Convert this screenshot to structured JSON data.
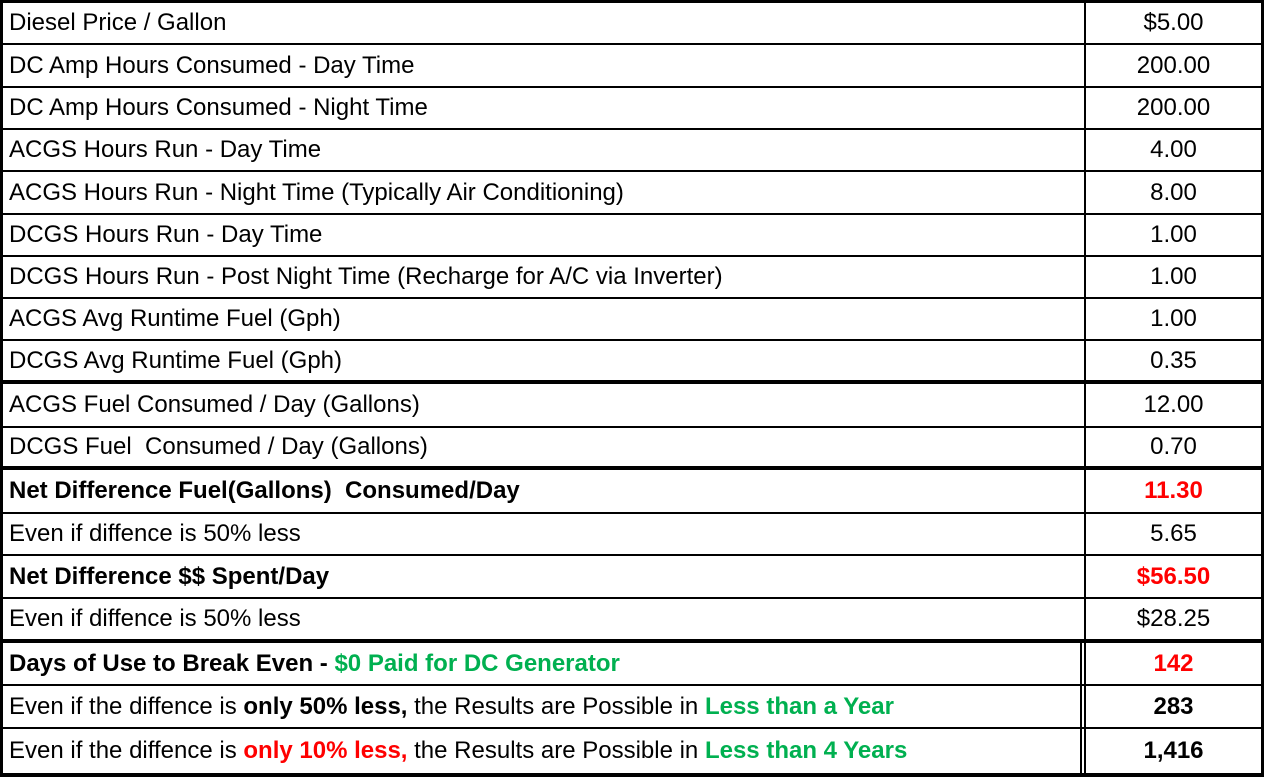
{
  "colors": {
    "red": "#ff0000",
    "green": "#00b050"
  },
  "rows": [
    {
      "label_parts": [
        {
          "text": "Diesel Price / Gallon"
        }
      ],
      "value": "$5.00"
    },
    {
      "label_parts": [
        {
          "text": "DC Amp Hours Consumed - Day Time"
        }
      ],
      "value": "200.00"
    },
    {
      "label_parts": [
        {
          "text": "DC Amp Hours Consumed - Night Time"
        }
      ],
      "value": "200.00"
    },
    {
      "label_parts": [
        {
          "text": "ACGS Hours Run - Day Time"
        }
      ],
      "value": "4.00"
    },
    {
      "label_parts": [
        {
          "text": "ACGS Hours Run - Night Time (Typically Air Conditioning)"
        }
      ],
      "value": "8.00"
    },
    {
      "label_parts": [
        {
          "text": "DCGS Hours Run - Day Time"
        }
      ],
      "value": "1.00"
    },
    {
      "label_parts": [
        {
          "text": "DCGS Hours Run - Post Night Time (Recharge for A/C via Inverter)"
        }
      ],
      "value": "1.00"
    },
    {
      "label_parts": [
        {
          "text": "ACGS Avg Runtime Fuel (Gph)"
        }
      ],
      "value": "1.00"
    },
    {
      "label_parts": [
        {
          "text": "DCGS Avg Runtime Fuel (Gph)"
        }
      ],
      "value": "0.35"
    },
    {
      "label_parts": [
        {
          "text": "ACGS Fuel Consumed / Day (Gallons)"
        }
      ],
      "value": "12.00"
    },
    {
      "label_parts": [
        {
          "text": "DCGS Fuel  Consumed / Day (Gallons)"
        }
      ],
      "value": "0.70"
    },
    {
      "label_parts": [
        {
          "text": "Net Difference Fuel(Gallons)  Consumed/Day",
          "style": "b"
        }
      ],
      "value": "11.30",
      "value_style": "b red"
    },
    {
      "label_parts": [
        {
          "text": "Even if diffence is 50% less"
        }
      ],
      "value": "5.65"
    },
    {
      "label_parts": [
        {
          "text": "Net Difference $$ Spent/Day",
          "style": "b"
        }
      ],
      "value": "$56.50",
      "value_style": "b red"
    },
    {
      "label_parts": [
        {
          "text": "Even if diffence is 50% less"
        }
      ],
      "value": "$28.25"
    },
    {
      "label_parts": [
        {
          "text": "Days of Use to Break Even - ",
          "style": "b"
        },
        {
          "text": "$0 Paid for DC Generator",
          "style": "b green"
        }
      ],
      "value": "142",
      "value_style": "b red"
    },
    {
      "label_parts": [
        {
          "text": "Even if the diffence is "
        },
        {
          "text": "only 50% less,",
          "style": "b"
        },
        {
          "text": " the Results are Possible in "
        },
        {
          "text": "Less than a Year",
          "style": "b green"
        }
      ],
      "value": "283",
      "value_style": "b"
    },
    {
      "label_parts": [
        {
          "text": "Even if the diffence is "
        },
        {
          "text": "only 10% less,",
          "style": "b red"
        },
        {
          "text": " the Results are Possible in "
        },
        {
          "text": "Less than 4 Years",
          "style": "b green"
        }
      ],
      "value": "1,416",
      "value_style": "b"
    }
  ]
}
